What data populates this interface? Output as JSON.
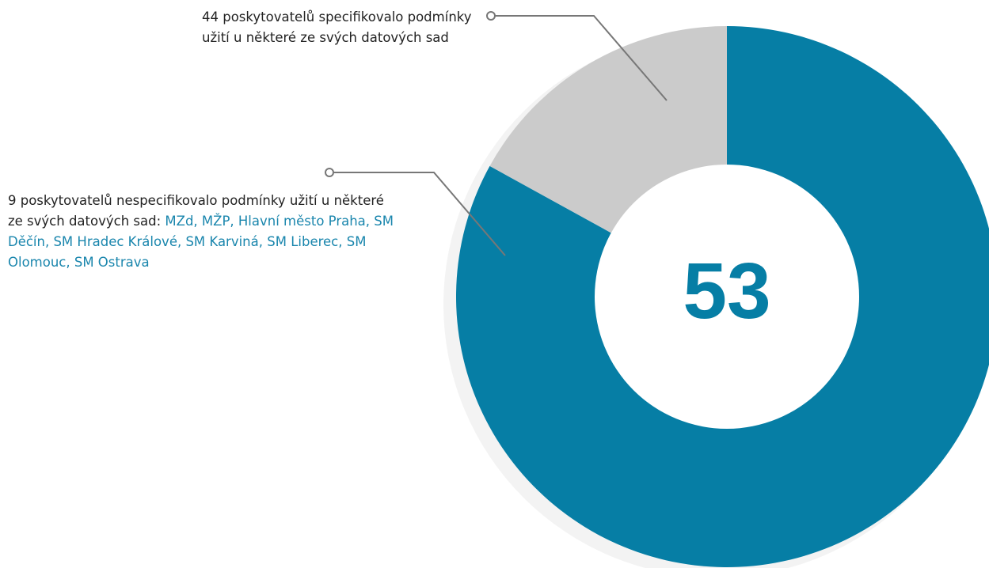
{
  "chart_data": {
    "type": "donut",
    "values": [
      44,
      9
    ],
    "colors": [
      "#067ea5",
      "#cbcbcb"
    ],
    "total": 53,
    "total_color": "#067ea5",
    "annotations": [
      {
        "text": "44 poskytovatelů specifikovalo podmínky užití u některé ze svých datových sad"
      },
      {
        "text": "9 poskytovatelů nespecifikovalo podmínky užití u některé ze svých datových sad:",
        "highlight": "MZd, MŽP, Hlavní město Praha, SM Děčín, SM Hradec Králové, SM Karviná, SM Liberec, SM Olomouc, SM Ostrava"
      }
    ]
  }
}
